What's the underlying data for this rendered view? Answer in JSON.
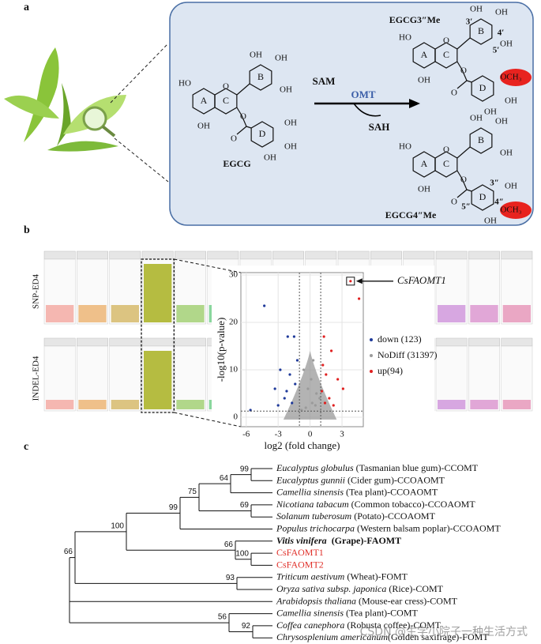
{
  "figure": {
    "panel_labels": [
      "a",
      "b",
      "c"
    ],
    "panel_a": {
      "molecules": [
        {
          "name": "EGCG",
          "rings": [
            "A",
            "C",
            "B",
            "D"
          ],
          "groups": [
            {
              "text": "HO"
            },
            {
              "text": "OH"
            },
            {
              "text": "O"
            },
            {
              "text": "OH"
            },
            {
              "text": "OH"
            },
            {
              "text": "OH"
            },
            {
              "text": "O"
            },
            {
              "text": "O"
            },
            {
              "text": "OH"
            },
            {
              "text": "OH"
            },
            {
              "text": "OH"
            }
          ]
        },
        {
          "name": "EGCG3″Me",
          "rings": [
            "A",
            "C",
            "B",
            "D"
          ],
          "groups": [
            {
              "text": "HO"
            },
            {
              "text": "OH"
            },
            {
              "text": "O"
            },
            {
              "text": "OH"
            },
            {
              "text": "OH"
            },
            {
              "text": "OH"
            },
            {
              "text": "O"
            },
            {
              "text": "O"
            },
            {
              "text": "OCH₃",
              "highlight": true
            },
            {
              "text": "OH"
            },
            {
              "text": "OH"
            }
          ],
          "positions": [
            "3′",
            "4′",
            "5′"
          ]
        },
        {
          "name": "EGCG4″Me",
          "rings": [
            "A",
            "C",
            "B",
            "D"
          ],
          "groups": [
            {
              "text": "HO"
            },
            {
              "text": "OH"
            },
            {
              "text": "O"
            },
            {
              "text": "OH"
            },
            {
              "text": "OH"
            },
            {
              "text": "OH"
            },
            {
              "text": "O"
            },
            {
              "text": "O"
            },
            {
              "text": "OH"
            },
            {
              "text": "OCH₃",
              "highlight": true
            },
            {
              "text": "OH"
            }
          ],
          "positions": [
            "3″",
            "4″",
            "5″"
          ]
        }
      ],
      "reagents": {
        "donor": "SAM",
        "enzyme": "OMT",
        "product": "SAH"
      }
    },
    "panel_b": {
      "rows": [
        "SNP-ED4",
        "INDEL-ED4"
      ]
    },
    "panel_c": {
      "leaves": [
        {
          "species": "Eucalyptus globulus",
          "rest": " (Tasmanian blue gum)-CCOMT"
        },
        {
          "species": "Eucalyptus gunnii",
          "rest": " (Cider gum)-CCOAOMT"
        },
        {
          "species": "Camellia sinensis",
          "rest": " (Tea plant)-CCOAOMT"
        },
        {
          "species": "Nicotiana tabacum",
          "rest": " (Common tobacco)-CCOAOMT"
        },
        {
          "species": "Solanum tuberosum",
          "rest": " (Potato)-CCOAOMT"
        },
        {
          "species": "Populus trichocarpa",
          "rest": " (Western balsam poplar)-CCOAOMT"
        },
        {
          "species": "Vitis vinifera",
          "rest": "  (Grape)-FAOMT",
          "bold": true
        },
        {
          "name": "CsFAOMT1",
          "color": "#e0302a"
        },
        {
          "name": "CsFAOMT2",
          "color": "#e0302a"
        },
        {
          "species": "Triticum aestivum",
          "rest": " (Wheat)-FOMT"
        },
        {
          "species": "Oryza sativa subsp. japonica",
          "rest": " (Rice)-COMT"
        },
        {
          "species": "Arabidopsis thaliana",
          "rest": " (Mouse-ear cress)-COMT"
        },
        {
          "species": "Camellia sinensis",
          "rest": " (Tea plant)-COMT"
        },
        {
          "species": "Coffea canephora",
          "rest": " (Robusta coffee)-COMT"
        },
        {
          "species": "Chrysosplenium americanum",
          "rest": "(Golden saxifrage)-FOMT"
        }
      ],
      "bootstrap": [
        99,
        64,
        69,
        75,
        99,
        100,
        66,
        100,
        93,
        66,
        56,
        92
      ]
    },
    "watermark": "CSDN @生学小院子一种生活方式"
  },
  "chart_data": {
    "type": "scatter",
    "ylabel": "-log10(p-value)",
    "xlabel": "log2 (fold change)",
    "xlim": [
      -6.5,
      5
    ],
    "ylim": [
      -2,
      30.5
    ],
    "xticks": [
      -6,
      -3,
      0,
      3
    ],
    "yticks": [
      0,
      10,
      20,
      30
    ],
    "grid": true,
    "fc_thresholds": [
      -1,
      1
    ],
    "p_threshold": 1.3,
    "annotation": "CsFAOMT1",
    "series": [
      {
        "name": "down (123)",
        "color": "#1f3a9a",
        "x": [
          -4.3,
          -2.1,
          -1.5,
          -2.8,
          -1.9,
          -3.3,
          -1.2,
          -2.4,
          -1.7,
          -3.0,
          -1.4,
          -2.2,
          -5.6
        ],
        "values": [
          23.5,
          17,
          17,
          10,
          9,
          6,
          12,
          4,
          3,
          2.5,
          7,
          5.5,
          1.5
        ]
      },
      {
        "name": "NoDiff (31397)",
        "color": "#9a9a9a",
        "x": [
          0.2,
          -0.4,
          0.6,
          -0.8,
          0.1,
          0.9,
          -0.2,
          0.5,
          -0.6,
          0.3
        ],
        "values": [
          3,
          2,
          5,
          1.5,
          8,
          4,
          6,
          2.5,
          10,
          12
        ]
      },
      {
        "name": "up(94)",
        "color": "#e02020",
        "x": [
          3.8,
          4.6,
          1.3,
          2.0,
          1.5,
          2.6,
          1.2,
          1.8,
          3.1,
          1.4,
          2.2,
          1.1
        ],
        "values": [
          28.7,
          25,
          17,
          14,
          9,
          8,
          11,
          4,
          6,
          3,
          2.5,
          5.5
        ]
      }
    ]
  }
}
